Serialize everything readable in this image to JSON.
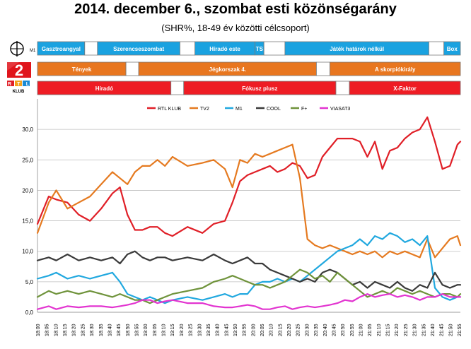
{
  "header": {
    "title": "2014. december 6., szombat esti közönségarány",
    "subtitle": "(SHR%, 18-49 év közötti célcsoport)"
  },
  "logos": {
    "m1": "M1",
    "rtl_word": "RTL",
    "rtl_sub": "KLUB"
  },
  "colors": {
    "m1_band": "#1aa2e0",
    "tv2_band": "#e8761f",
    "rtl_band": "#ee1c24",
    "rtl_klub": "#e01f27",
    "tv2": "#e57a20",
    "m1": "#21a8df",
    "cool": "#3a3a3a",
    "fplus": "#6f933b",
    "viasat3": "#e234d0"
  },
  "schedule": {
    "m1": [
      {
        "start": 0,
        "end": 63,
        "label": "Gasztroangyal"
      },
      {
        "start": 63,
        "end": 80,
        "label": ""
      },
      {
        "start": 80,
        "end": 190,
        "label": "Szerencseszombat"
      },
      {
        "start": 190,
        "end": 210,
        "label": ""
      },
      {
        "start": 210,
        "end": 290,
        "label": "Híradó este"
      },
      {
        "start": 290,
        "end": 302,
        "label": "TS"
      },
      {
        "start": 302,
        "end": 330,
        "label": ""
      },
      {
        "start": 330,
        "end": 522,
        "label": "Játék határok nélkül"
      },
      {
        "start": 522,
        "end": 542,
        "label": ""
      },
      {
        "start": 542,
        "end": 564,
        "label": "Box"
      }
    ],
    "tv2": [
      {
        "start": 0,
        "end": 118,
        "label": "Tények"
      },
      {
        "start": 118,
        "end": 135,
        "label": ""
      },
      {
        "start": 135,
        "end": 372,
        "label": "Jégkorszak 4."
      },
      {
        "start": 372,
        "end": 390,
        "label": ""
      },
      {
        "start": 390,
        "end": 564,
        "label": "A skorpiókirály"
      }
    ],
    "rtl": [
      {
        "start": 0,
        "end": 178,
        "label": "Híradó"
      },
      {
        "start": 178,
        "end": 195,
        "label": ""
      },
      {
        "start": 195,
        "end": 398,
        "label": "Fókusz plusz"
      },
      {
        "start": 398,
        "end": 416,
        "label": ""
      },
      {
        "start": 416,
        "end": 564,
        "label": "X-Faktor"
      }
    ]
  },
  "chart_data": {
    "type": "line",
    "title": "",
    "xlabel": "",
    "ylabel": "",
    "ylim": [
      0,
      35
    ],
    "yticks": [
      "0,0",
      "5,0",
      "10,0",
      "15,0",
      "20,0",
      "25,0",
      "30,0"
    ],
    "grid": "horizontal",
    "legend_position": "top",
    "x_minutes": [
      0,
      15,
      25,
      40,
      55,
      70,
      85,
      100,
      110,
      120,
      130,
      140,
      150,
      160,
      170,
      180,
      200,
      220,
      235,
      250,
      260,
      270,
      280,
      290,
      300,
      310,
      320,
      330,
      340,
      350,
      360,
      370,
      380,
      390,
      400,
      410,
      420,
      430,
      440,
      450,
      460,
      470,
      480,
      490,
      500,
      510,
      520,
      530,
      540,
      550,
      560,
      564
    ],
    "xtick_labels": [
      "18:00",
      "18:05",
      "18:10",
      "18:15",
      "18:20",
      "18:25",
      "18:30",
      "18:35",
      "18:40",
      "18:45",
      "18:50",
      "18:55",
      "19:00",
      "19:05",
      "19:10",
      "19:15",
      "19:20",
      "19:25",
      "19:30",
      "19:35",
      "19:40",
      "19:45",
      "19:50",
      "19:55",
      "20:00",
      "20:05",
      "20:10",
      "20:15",
      "20:20",
      "20:25",
      "20:30",
      "20:35",
      "20:40",
      "20:45",
      "20:50",
      "20:55",
      "21:00",
      "21:05",
      "21:10",
      "21:15",
      "21:20",
      "21:25",
      "21:30",
      "21:35",
      "21:40",
      "21:45",
      "21:50",
      "21:55"
    ],
    "series": [
      {
        "name": "RTL KLUB",
        "color": "#e01f27",
        "values": [
          14.5,
          19,
          18.5,
          18,
          16,
          15,
          17,
          19.5,
          20.5,
          16,
          13.5,
          13.5,
          14,
          14,
          13,
          12.5,
          14,
          13,
          14.5,
          15,
          18,
          21.5,
          22.5,
          23,
          23.5,
          24,
          23,
          23.5,
          24.5,
          24,
          22,
          22.5,
          25.5,
          27,
          28.5,
          28.5,
          28.5,
          28,
          25.5,
          28,
          23.5,
          26.5,
          27,
          28.5,
          29.5,
          30,
          32,
          28,
          23.5,
          24,
          27.5,
          28
        ]
      },
      {
        "name": "TV2",
        "color": "#e57a20",
        "values": [
          13,
          18,
          20,
          17,
          18,
          19,
          21,
          23,
          22,
          21,
          23,
          24,
          24,
          25,
          24,
          25.5,
          24,
          24.5,
          25,
          23.5,
          20.5,
          25,
          24.5,
          26,
          25.5,
          26,
          26.5,
          27,
          27.5,
          22,
          12,
          11,
          10.5,
          11,
          10.5,
          10,
          9.5,
          10,
          9.5,
          10,
          9,
          10,
          9.5,
          10,
          9.5,
          9,
          12,
          9,
          10.5,
          12,
          12.5,
          11
        ]
      },
      {
        "name": "M1",
        "color": "#21a8df",
        "values": [
          5.5,
          6,
          6.5,
          5.5,
          6,
          5.5,
          6,
          6.5,
          5,
          3,
          2.5,
          2,
          2.5,
          2,
          1.5,
          2,
          2.5,
          2,
          2.5,
          3,
          2.5,
          3,
          3,
          4.5,
          5,
          5,
          5.5,
          5,
          5.5,
          5,
          6,
          7,
          8,
          9,
          10,
          10.5,
          11,
          12,
          11,
          12.5,
          12,
          13,
          12.5,
          11.5,
          12,
          11,
          12.5,
          4,
          2.5,
          2,
          2.5,
          2.5
        ]
      },
      {
        "name": "COOL",
        "color": "#3a3a3a",
        "values": [
          8.5,
          9,
          8.5,
          9.5,
          8.5,
          9,
          8.5,
          9,
          8,
          9.5,
          10,
          9,
          8.5,
          9,
          9,
          8.5,
          9,
          8.5,
          9.5,
          8.5,
          8,
          8.5,
          9,
          8,
          8,
          7,
          6.5,
          6,
          5.5,
          5,
          5.5,
          5,
          6.5,
          7,
          6.5,
          5.5,
          4.5,
          5,
          4,
          5,
          4.5,
          4,
          5,
          4,
          3.5,
          4.5,
          4,
          6.5,
          4.5,
          4,
          4.5,
          4.5
        ]
      },
      {
        "name": "F+",
        "color": "#6f933b",
        "values": [
          2.5,
          3.5,
          3,
          3.5,
          3,
          3.5,
          3,
          2.5,
          3,
          2.5,
          2,
          2,
          1.5,
          2,
          2.5,
          3,
          3.5,
          4,
          5,
          5.5,
          6,
          5.5,
          5,
          4.5,
          4.5,
          4,
          4.5,
          5,
          6,
          7,
          6.5,
          5.5,
          6,
          5,
          6.5,
          5.5,
          4.5,
          3.5,
          2.5,
          3,
          3.5,
          3,
          4,
          3.5,
          3,
          3.5,
          3,
          2.5,
          3,
          3,
          2.5,
          3
        ]
      },
      {
        "name": "VIASAT3",
        "color": "#e234d0",
        "values": [
          0.5,
          1,
          0.5,
          1,
          0.8,
          1,
          1,
          0.8,
          1,
          1.2,
          1.5,
          2,
          2,
          1.5,
          1.8,
          2,
          1.5,
          1.5,
          1,
          0.8,
          0.8,
          1,
          1.2,
          1,
          0.5,
          0.5,
          0.8,
          1,
          0.5,
          0.8,
          1,
          0.8,
          1,
          1.2,
          1.5,
          2,
          1.8,
          2.5,
          3,
          2.5,
          2.8,
          3,
          2.5,
          2.8,
          2.5,
          2,
          2.5,
          2.5,
          3,
          2.5,
          2.5,
          2.5
        ]
      }
    ]
  }
}
